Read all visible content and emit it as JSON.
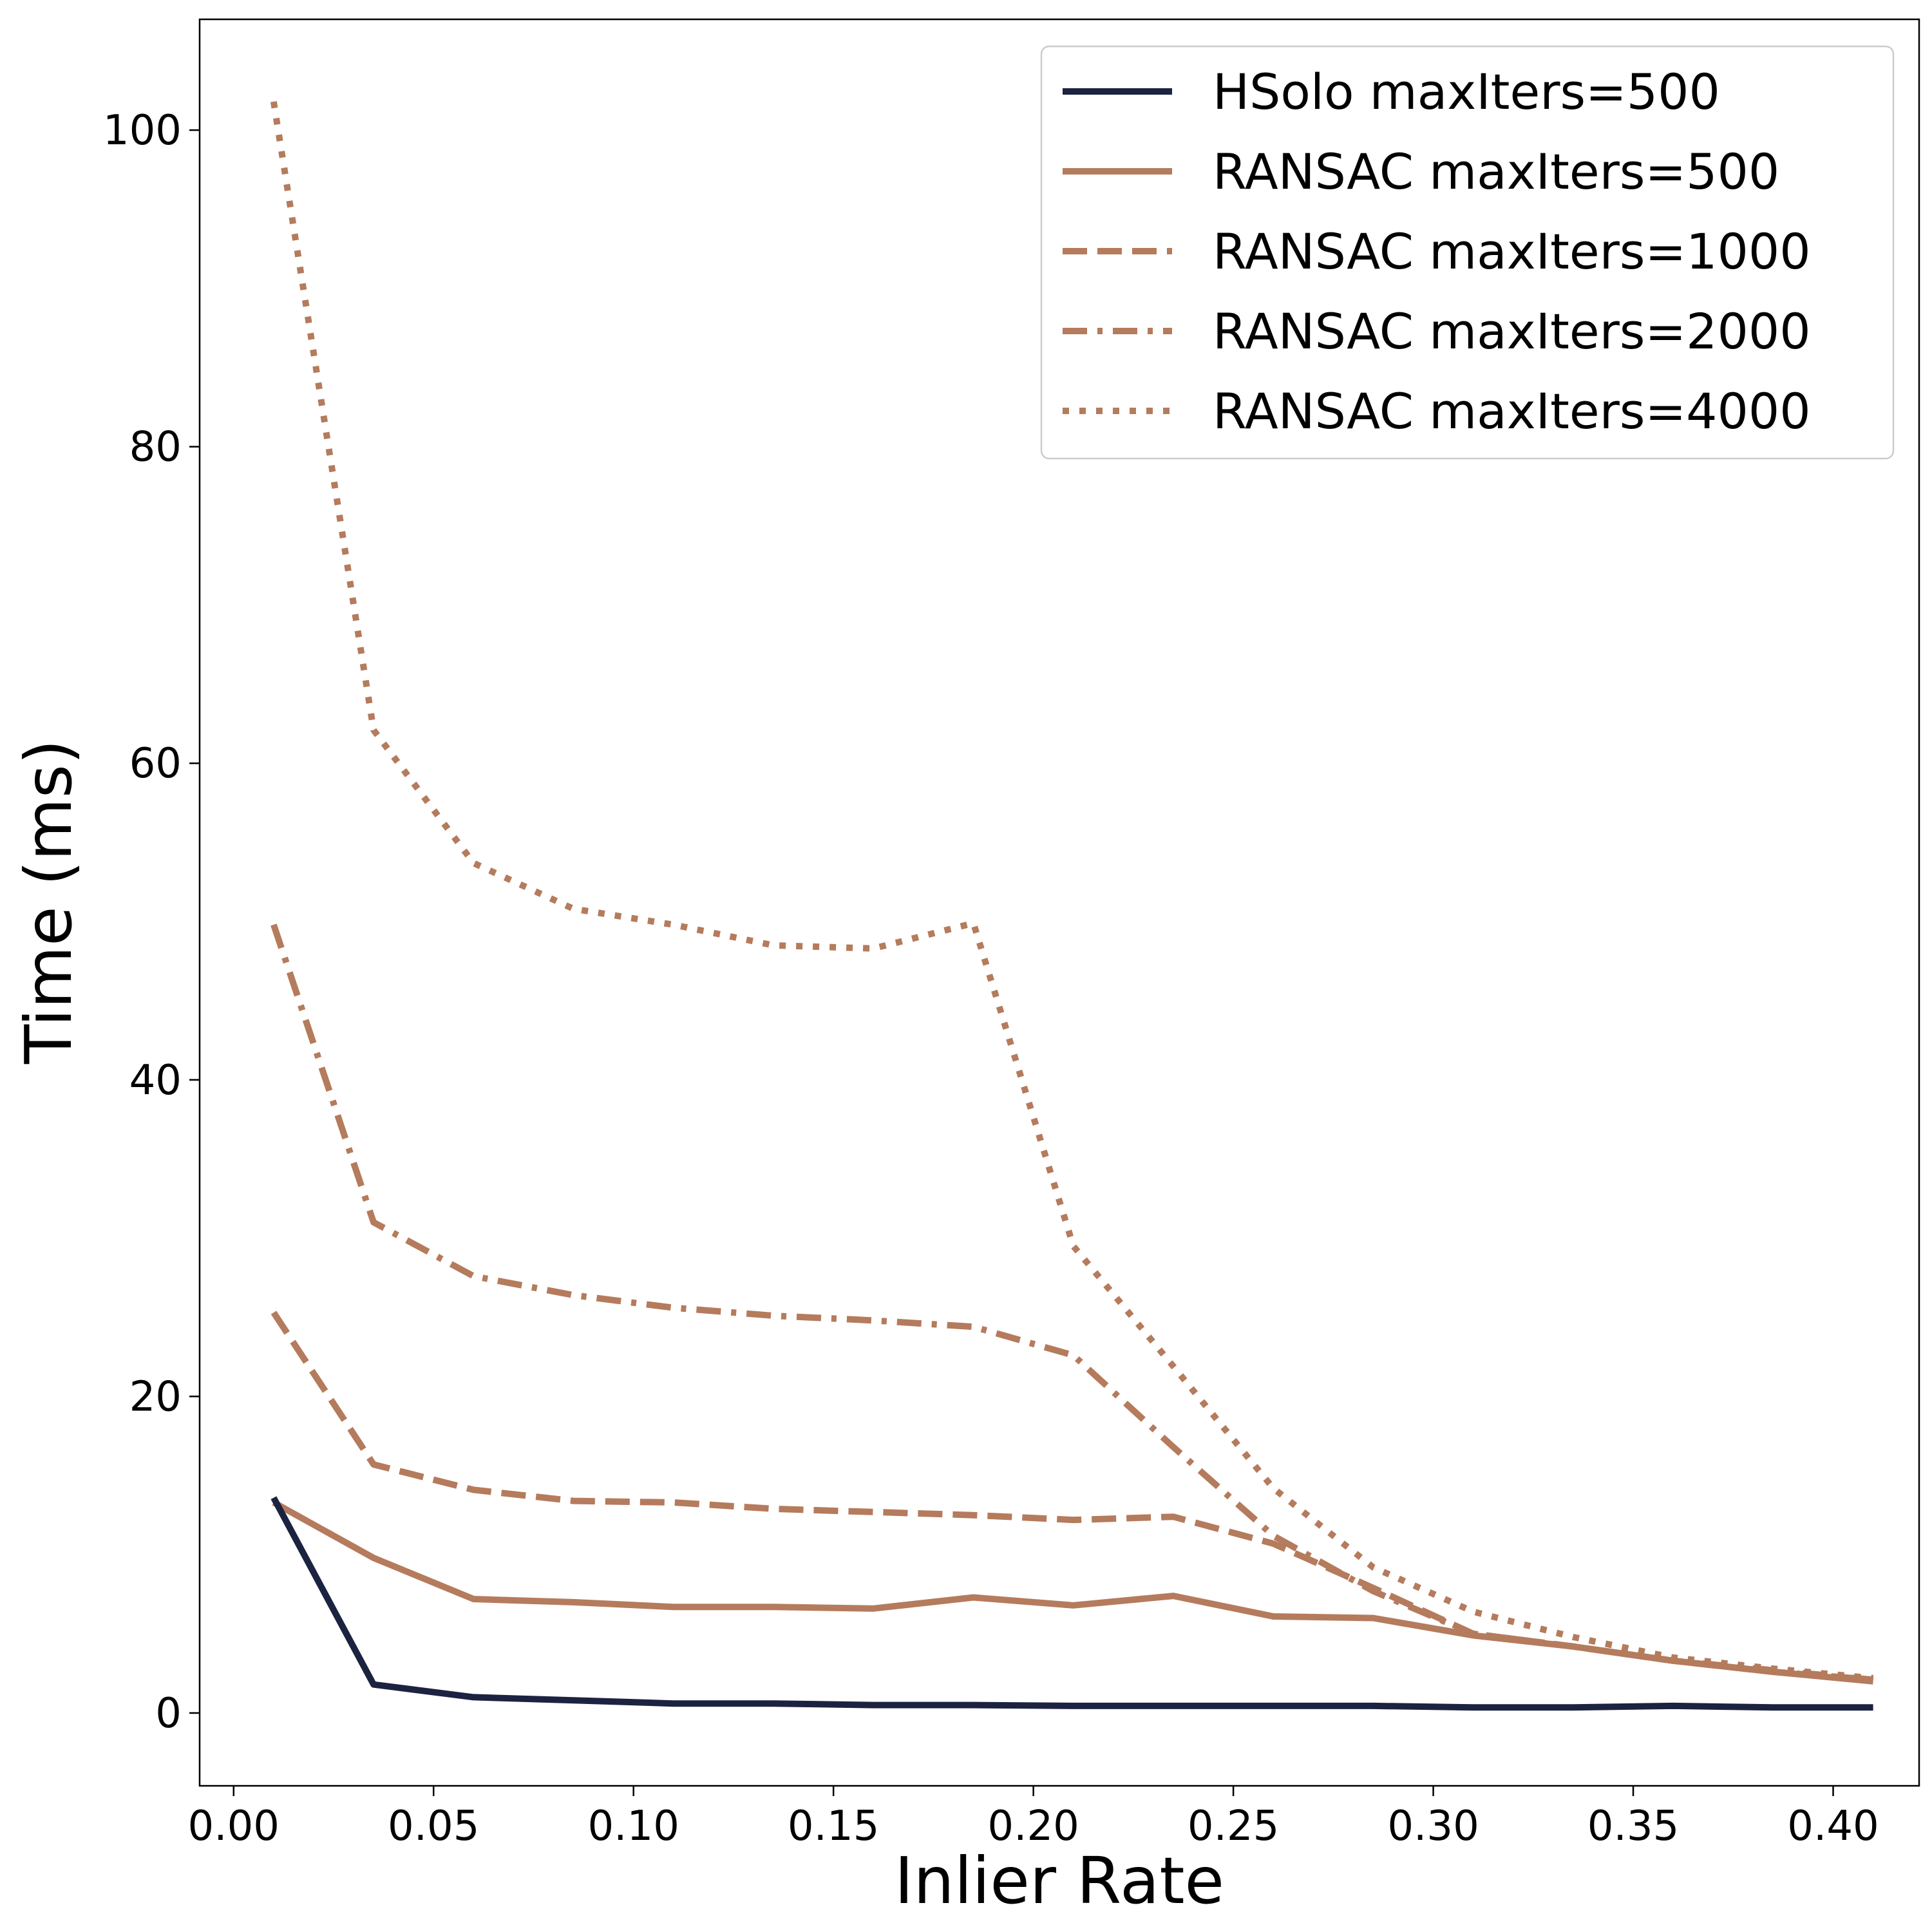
{
  "chart_data": {
    "type": "line",
    "title": "",
    "xlabel": "Inlier Rate",
    "ylabel": "Time (ms)",
    "xlim": [
      -0.0085,
      0.4215
    ],
    "ylim": [
      -4.6,
      107
    ],
    "xticks": [
      0.0,
      0.05,
      0.1,
      0.15,
      0.2,
      0.25,
      0.3,
      0.35,
      0.4
    ],
    "xtick_labels": [
      "0.00",
      "0.05",
      "0.10",
      "0.15",
      "0.20",
      "0.25",
      "0.30",
      "0.35",
      "0.40"
    ],
    "yticks": [
      0,
      20,
      40,
      60,
      80,
      100
    ],
    "ytick_labels": [
      "0",
      "20",
      "40",
      "60",
      "80",
      "100"
    ],
    "grid": false,
    "legend_position": "top-right",
    "x": [
      0.01,
      0.035,
      0.06,
      0.085,
      0.11,
      0.135,
      0.16,
      0.185,
      0.21,
      0.235,
      0.26,
      0.285,
      0.31,
      0.335,
      0.36,
      0.385,
      0.41
    ],
    "series": [
      {
        "name": "HSolo maxIters=500",
        "color": "#1c2340",
        "dash": "solid",
        "values": [
          13.6,
          1.8,
          1.0,
          0.8,
          0.6,
          0.6,
          0.5,
          0.5,
          0.45,
          0.45,
          0.45,
          0.45,
          0.35,
          0.35,
          0.45,
          0.35,
          0.35
        ]
      },
      {
        "name": "RANSAC maxIters=500",
        "color": "#b57b5d",
        "dash": "solid",
        "values": [
          13.3,
          9.8,
          7.2,
          7.0,
          6.7,
          6.7,
          6.6,
          7.3,
          6.8,
          7.4,
          6.1,
          6.0,
          4.9,
          4.2,
          3.3,
          2.6,
          2.0
        ]
      },
      {
        "name": "RANSAC maxIters=1000",
        "color": "#b57b5d",
        "dash": "dashed",
        "values": [
          25.3,
          15.7,
          14.1,
          13.4,
          13.3,
          12.9,
          12.7,
          12.5,
          12.2,
          12.4,
          10.7,
          7.9,
          5.0,
          4.2,
          3.3,
          2.6,
          2.1
        ]
      },
      {
        "name": "RANSAC maxIters=2000",
        "color": "#b57b5d",
        "dash": "dashdot",
        "values": [
          49.8,
          31.0,
          27.6,
          26.4,
          25.6,
          25.1,
          24.8,
          24.4,
          22.6,
          16.8,
          11.2,
          7.7,
          5.0,
          4.2,
          3.3,
          2.7,
          2.1
        ]
      },
      {
        "name": "RANSAC maxIters=4000",
        "color": "#b57b5d",
        "dash": "dotted",
        "values": [
          101.8,
          62.1,
          53.7,
          50.8,
          49.8,
          48.5,
          48.3,
          49.9,
          29.5,
          21.9,
          14.2,
          9.2,
          6.4,
          4.8,
          3.5,
          2.8,
          2.2
        ]
      }
    ]
  }
}
